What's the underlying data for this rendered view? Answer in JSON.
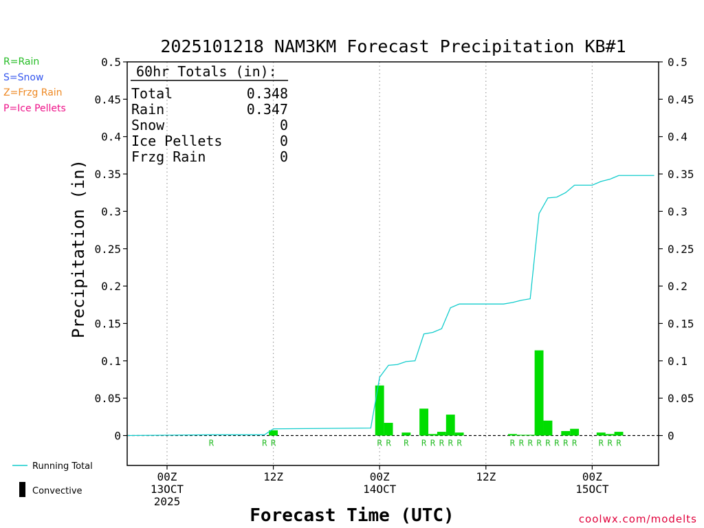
{
  "title": "2025101218 NAM3KM Forecast Precipitation KB#1",
  "precip_types": [
    {
      "text": "R=Rain",
      "color": "#22bb22"
    },
    {
      "text": "S=Snow",
      "color": "#3355ee"
    },
    {
      "text": "Z=Frzg Rain",
      "color": "#ee8822"
    },
    {
      "text": "P=Ice Pellets",
      "color": "#ee1188"
    }
  ],
  "totals": {
    "header": "60hr Totals (in):",
    "rows": [
      {
        "label": "Total",
        "value": "0.348"
      },
      {
        "label": "Rain",
        "value": "0.347"
      },
      {
        "label": "Snow",
        "value": "0"
      },
      {
        "label": "Ice Pellets",
        "value": "0"
      },
      {
        "label": "Frzg Rain",
        "value": "0"
      }
    ]
  },
  "legend": {
    "running_total": "Running Total",
    "convective": "Convective"
  },
  "colors": {
    "bar": "#00dd00",
    "line": "#11cccc",
    "rain_label": "#22bb22"
  },
  "footer": "coolwx.com/modelts",
  "chart_data": {
    "type": "bar",
    "title": "2025101218 NAM3KM Forecast Precipitation KB#1",
    "xlabel": "Forecast Time (UTC)",
    "ylabel": "Precipitation (in)",
    "ylim": [
      -0.04,
      0.5
    ],
    "xlim": [
      -4.5,
      55.5
    ],
    "yticks": [
      0,
      0.05,
      0.1,
      0.15,
      0.2,
      0.25,
      0.3,
      0.35,
      0.4,
      0.45,
      0.5
    ],
    "ytick_labels": [
      "0",
      "0.05",
      "0.1",
      "0.15",
      "0.2",
      "0.25",
      "0.3",
      "0.35",
      "0.4",
      "0.45",
      "0.5"
    ],
    "xticks": [
      {
        "x": 0,
        "lines": [
          "00Z",
          "13OCT",
          "2025"
        ]
      },
      {
        "x": 12,
        "lines": [
          "12Z"
        ]
      },
      {
        "x": 24,
        "lines": [
          "00Z",
          "14OCT"
        ]
      },
      {
        "x": 36,
        "lines": [
          "12Z"
        ]
      },
      {
        "x": 48,
        "lines": [
          "00Z",
          "15OCT"
        ]
      }
    ],
    "gridlines_x": [
      0,
      12,
      24,
      36,
      48
    ],
    "series": [
      {
        "name": "Convective",
        "kind": "bar",
        "values": [
          {
            "hour": 12,
            "value": 0.007
          },
          {
            "hour": 24,
            "value": 0.067
          },
          {
            "hour": 25,
            "value": 0.017
          },
          {
            "hour": 27,
            "value": 0.004
          },
          {
            "hour": 29,
            "value": 0.036
          },
          {
            "hour": 30,
            "value": 0.002
          },
          {
            "hour": 31,
            "value": 0.005
          },
          {
            "hour": 32,
            "value": 0.028
          },
          {
            "hour": 33,
            "value": 0.004
          },
          {
            "hour": 39,
            "value": 0.002
          },
          {
            "hour": 40,
            "value": 0.001
          },
          {
            "hour": 41,
            "value": 0.001
          },
          {
            "hour": 42,
            "value": 0.114
          },
          {
            "hour": 43,
            "value": 0.02
          },
          {
            "hour": 45,
            "value": 0.006
          },
          {
            "hour": 46,
            "value": 0.009
          },
          {
            "hour": 49,
            "value": 0.004
          },
          {
            "hour": 50,
            "value": 0.002
          },
          {
            "hour": 51,
            "value": 0.005
          }
        ]
      },
      {
        "name": "Running Total",
        "kind": "line",
        "x": [
          -5,
          5,
          11,
          12,
          23,
          24,
          25,
          26,
          27,
          28,
          29,
          30,
          31,
          32,
          33,
          34,
          35,
          36,
          37,
          38,
          39,
          40,
          41,
          42,
          43,
          44,
          45,
          46,
          47,
          48,
          49,
          50,
          51,
          52,
          53,
          54,
          55
        ],
        "y": [
          0,
          0.001,
          0.001,
          0.009,
          0.01,
          0.078,
          0.094,
          0.095,
          0.099,
          0.1,
          0.136,
          0.138,
          0.143,
          0.171,
          0.176,
          0.176,
          0.176,
          0.176,
          0.176,
          0.176,
          0.178,
          0.181,
          0.183,
          0.297,
          0.318,
          0.319,
          0.325,
          0.335,
          0.335,
          0.335,
          0.34,
          0.343,
          0.348,
          0.348,
          0.348,
          0.348,
          0.348
        ]
      }
    ],
    "ptype_labels": [
      {
        "hour": 5,
        "text": "R"
      },
      {
        "hour": 11,
        "text": "R"
      },
      {
        "hour": 12,
        "text": "R"
      },
      {
        "hour": 24,
        "text": "R"
      },
      {
        "hour": 25,
        "text": "R"
      },
      {
        "hour": 27,
        "text": "R"
      },
      {
        "hour": 29,
        "text": "R"
      },
      {
        "hour": 30,
        "text": "R"
      },
      {
        "hour": 31,
        "text": "R"
      },
      {
        "hour": 32,
        "text": "R"
      },
      {
        "hour": 33,
        "text": "R"
      },
      {
        "hour": 39,
        "text": "R"
      },
      {
        "hour": 40,
        "text": "R"
      },
      {
        "hour": 41,
        "text": "R"
      },
      {
        "hour": 42,
        "text": "R"
      },
      {
        "hour": 43,
        "text": "R"
      },
      {
        "hour": 44,
        "text": "R"
      },
      {
        "hour": 45,
        "text": "R"
      },
      {
        "hour": 46,
        "text": "R"
      },
      {
        "hour": 49,
        "text": "R"
      },
      {
        "hour": 50,
        "text": "R"
      },
      {
        "hour": 51,
        "text": "R"
      }
    ]
  }
}
